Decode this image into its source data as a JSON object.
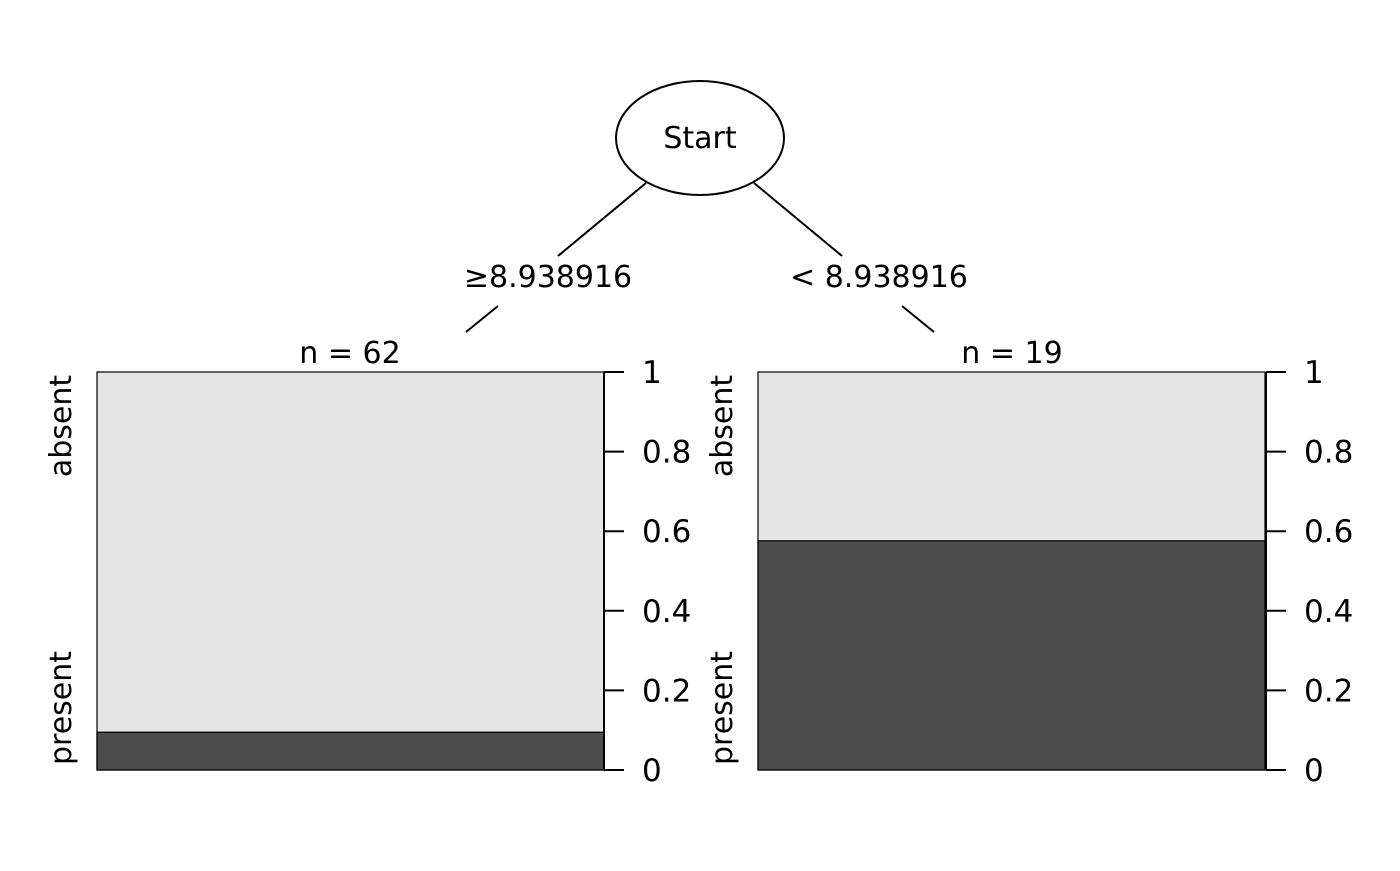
{
  "tree": {
    "root_label": "Start",
    "edges": {
      "left_label": "≥8.938916",
      "right_label": "< 8.938916"
    }
  },
  "leaves": [
    {
      "n_label": "n = 62",
      "top_class": "absent",
      "bottom_class": "present",
      "present_fraction": 0.095
    },
    {
      "n_label": "n = 19",
      "top_class": "absent",
      "bottom_class": "present",
      "present_fraction": 0.576
    }
  ],
  "axis": {
    "ticks": [
      "0",
      "0.2",
      "0.4",
      "0.6",
      "0.8",
      "1"
    ]
  },
  "colors": {
    "present_fill": "#4d4d4d",
    "absent_fill": "#e6e6e6",
    "stroke": "#000000",
    "background": "#ffffff"
  }
}
